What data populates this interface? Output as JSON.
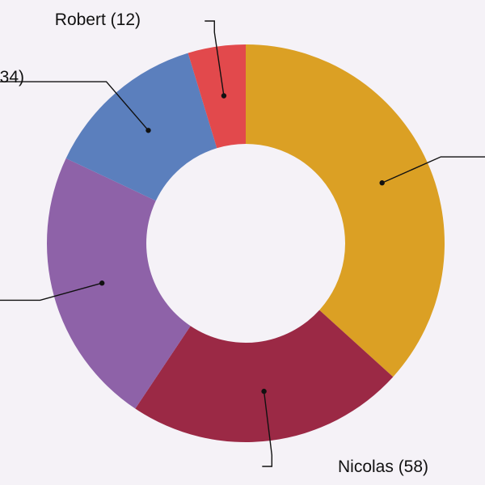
{
  "chart_data": {
    "type": "pie",
    "variant": "donut",
    "title": "",
    "legend": "none",
    "slices": [
      {
        "label": "",
        "value": 94,
        "color": "#dba024"
      },
      {
        "label": "Nicolas",
        "value": 58,
        "color": "#9b2945"
      },
      {
        "label": "",
        "value": 58,
        "color": "#8e62a8"
      },
      {
        "label": "",
        "value": 34,
        "color": "#5b7fbd"
      },
      {
        "label": "Robert",
        "value": 12,
        "color": "#e2494c"
      }
    ],
    "slice_labels": [
      "",
      "Nicolas (58)",
      "",
      "34)",
      "Robert (12)"
    ]
  }
}
